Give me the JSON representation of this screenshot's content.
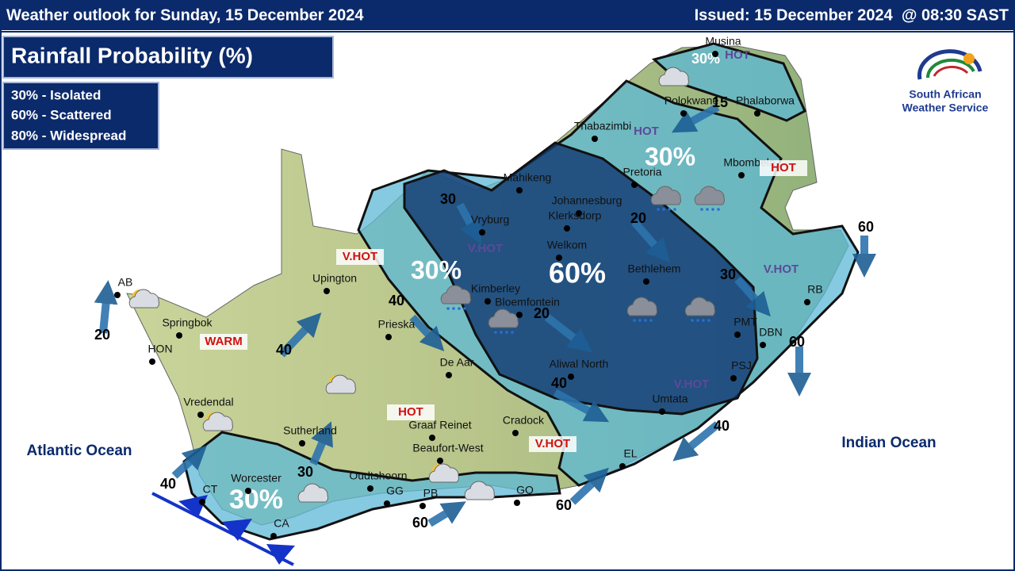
{
  "header": {
    "title": "Weather outlook for Sunday, 15 December 2024",
    "issued": "Issued: 15 December 2024  @ 08:30 SAST"
  },
  "panel_title": "Rainfall Probability (%)",
  "legend": [
    "30% - Isolated",
    "60% - Scattered",
    "80% - Widespread"
  ],
  "logo": [
    "South African",
    "Weather Service"
  ],
  "oceans": [
    "Atlantic Ocean",
    "Indian Ocean"
  ],
  "zones": [
    "30%",
    "30%",
    "30%",
    "60%",
    "30%"
  ],
  "places": [
    "Musina",
    "Polokwane",
    "Phalaborwa",
    "Thabazimbi",
    "Pretoria",
    "Mbombela",
    "Mahikeng",
    "Johannesburg",
    "Klerksdorp",
    "Vryburg",
    "Welkom",
    "Bethlehem",
    "Kimberley",
    "Bloemfontein",
    "Upington",
    "AB",
    "Springbok",
    "HON",
    "Prieska",
    "De Aar",
    "Aliwal North",
    "Umtata",
    "PMT",
    "DBN",
    "PSJ",
    "RB",
    "Vredendal",
    "Sutherland",
    "Graaf Reinet",
    "Cradock",
    "Beaufort-West",
    "Oudtshoorn",
    "Worcester",
    "CT",
    "CA",
    "PB",
    "GG",
    "GQ",
    "EL"
  ],
  "temperatures": [
    "HOT",
    "HOT",
    "HOT",
    "V.HOT",
    "V.HOT",
    "WARM",
    "HOT",
    "V.HOT",
    "V.HOT",
    "V.HOT"
  ],
  "winds": [
    "15",
    "30",
    "20",
    "60",
    "30",
    "40",
    "20",
    "20",
    "40",
    "40",
    "30",
    "60",
    "40",
    "40",
    "60",
    "60"
  ]
}
